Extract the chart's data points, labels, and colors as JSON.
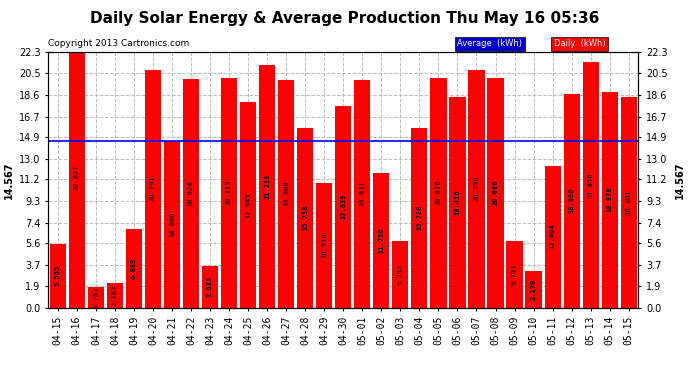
{
  "title": "Daily Solar Energy & Average Production Thu May 16 05:36",
  "copyright": "Copyright 2013 Cartronics.com",
  "categories": [
    "04-15",
    "04-16",
    "04-17",
    "04-18",
    "04-19",
    "04-20",
    "04-21",
    "04-22",
    "04-23",
    "04-24",
    "04-25",
    "04-26",
    "04-27",
    "04-28",
    "04-29",
    "04-30",
    "05-01",
    "05-02",
    "05-03",
    "05-04",
    "05-05",
    "05-06",
    "05-07",
    "05-08",
    "05-09",
    "05-10",
    "05-11",
    "05-12",
    "05-13",
    "05-14",
    "05-15"
  ],
  "values": [
    5.565,
    22.827,
    1.763,
    2.183,
    6.889,
    20.791,
    14.6,
    20.024,
    3.625,
    20.113,
    17.945,
    21.219,
    19.9,
    15.718,
    10.91,
    17.639,
    19.931,
    11.756,
    5.792,
    15.728,
    20.076,
    18.416,
    20.79,
    20.086,
    5.793,
    3.17,
    12.404,
    18.696,
    21.456,
    18.878,
    18.381
  ],
  "average": 14.567,
  "average_label": "14.567",
  "bar_color": "#ff0000",
  "average_color": "#0000ff",
  "background_color": "#ffffff",
  "plot_bg_color": "#ffffff",
  "grid_color": "#bbbbbb",
  "ylim_max": 22.3,
  "yticks": [
    0.0,
    1.9,
    3.7,
    5.6,
    7.4,
    9.3,
    11.2,
    13.0,
    14.9,
    16.7,
    18.6,
    20.5,
    22.3
  ],
  "ytick_labels": [
    "0.0",
    "1.9",
    "3.7",
    "5.6",
    "7.4",
    "9.3",
    "11.2",
    "13.0",
    "14.9",
    "16.7",
    "18.6",
    "20.5",
    "22.3"
  ],
  "title_fontsize": 11,
  "copyright_fontsize": 6.5,
  "tick_fontsize": 7,
  "bar_value_fontsize": 5,
  "legend_avg_label": "Average  (kWh)",
  "legend_daily_label": "Daily  (kWh)",
  "legend_avg_bg": "#0000cc",
  "legend_daily_bg": "#ff0000"
}
